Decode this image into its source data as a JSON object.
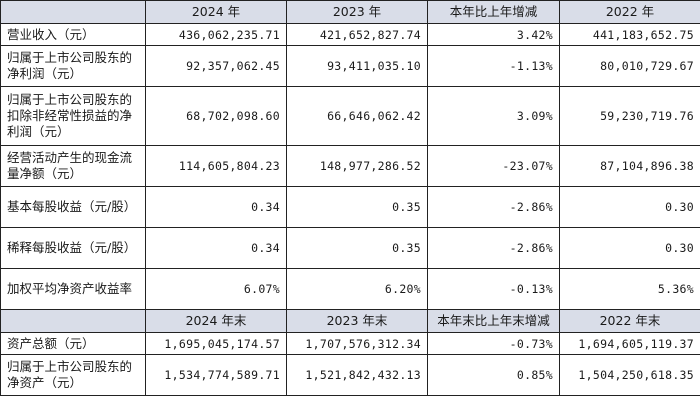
{
  "header1": [
    "",
    "2024 年",
    "2023 年",
    "本年比上年增减",
    "2022 年"
  ],
  "rows1": [
    {
      "label": "营业收入（元）",
      "v": [
        "436,062,235.71",
        "421,652,827.74",
        "3.42%",
        "441,183,652.75"
      ],
      "h": "r1"
    },
    {
      "label": "归属于上市公司股东的净利润（元）",
      "v": [
        "92,357,062.45",
        "93,411,035.10",
        "-1.13%",
        "80,010,729.67"
      ],
      "h": "r2"
    },
    {
      "label": "归属于上市公司股东的扣除非经常性损益的净利润（元）",
      "v": [
        "68,702,098.60",
        "66,646,062.42",
        "3.09%",
        "59,230,719.76"
      ],
      "h": "r3"
    },
    {
      "label": "经营活动产生的现金流量净额（元）",
      "v": [
        "114,605,804.23",
        "148,977,286.52",
        "-23.07%",
        "87,104,896.38"
      ],
      "h": "r2"
    },
    {
      "label": "基本每股收益（元/股）",
      "v": [
        "0.34",
        "0.35",
        "-2.86%",
        "0.30"
      ],
      "h": "r2"
    },
    {
      "label": "稀释每股收益（元/股）",
      "v": [
        "0.34",
        "0.35",
        "-2.86%",
        "0.30"
      ],
      "h": "r2"
    },
    {
      "label": "加权平均净资产收益率",
      "v": [
        "6.07%",
        "6.20%",
        "-0.13%",
        "5.36%"
      ],
      "h": "r2"
    }
  ],
  "header2": [
    "",
    "2024 年末",
    "2023 年末",
    "本年末比上年末增减",
    "2022 年末"
  ],
  "rows2": [
    {
      "label": "资产总额（元）",
      "v": [
        "1,695,045,174.57",
        "1,707,576,312.34",
        "-0.73%",
        "1,694,605,119.37"
      ],
      "h": "r1"
    },
    {
      "label": "归属于上市公司股东的净资产（元）",
      "v": [
        "1,534,774,589.71",
        "1,521,842,432.13",
        "0.85%",
        "1,504,250,618.35"
      ],
      "h": "r2"
    }
  ]
}
